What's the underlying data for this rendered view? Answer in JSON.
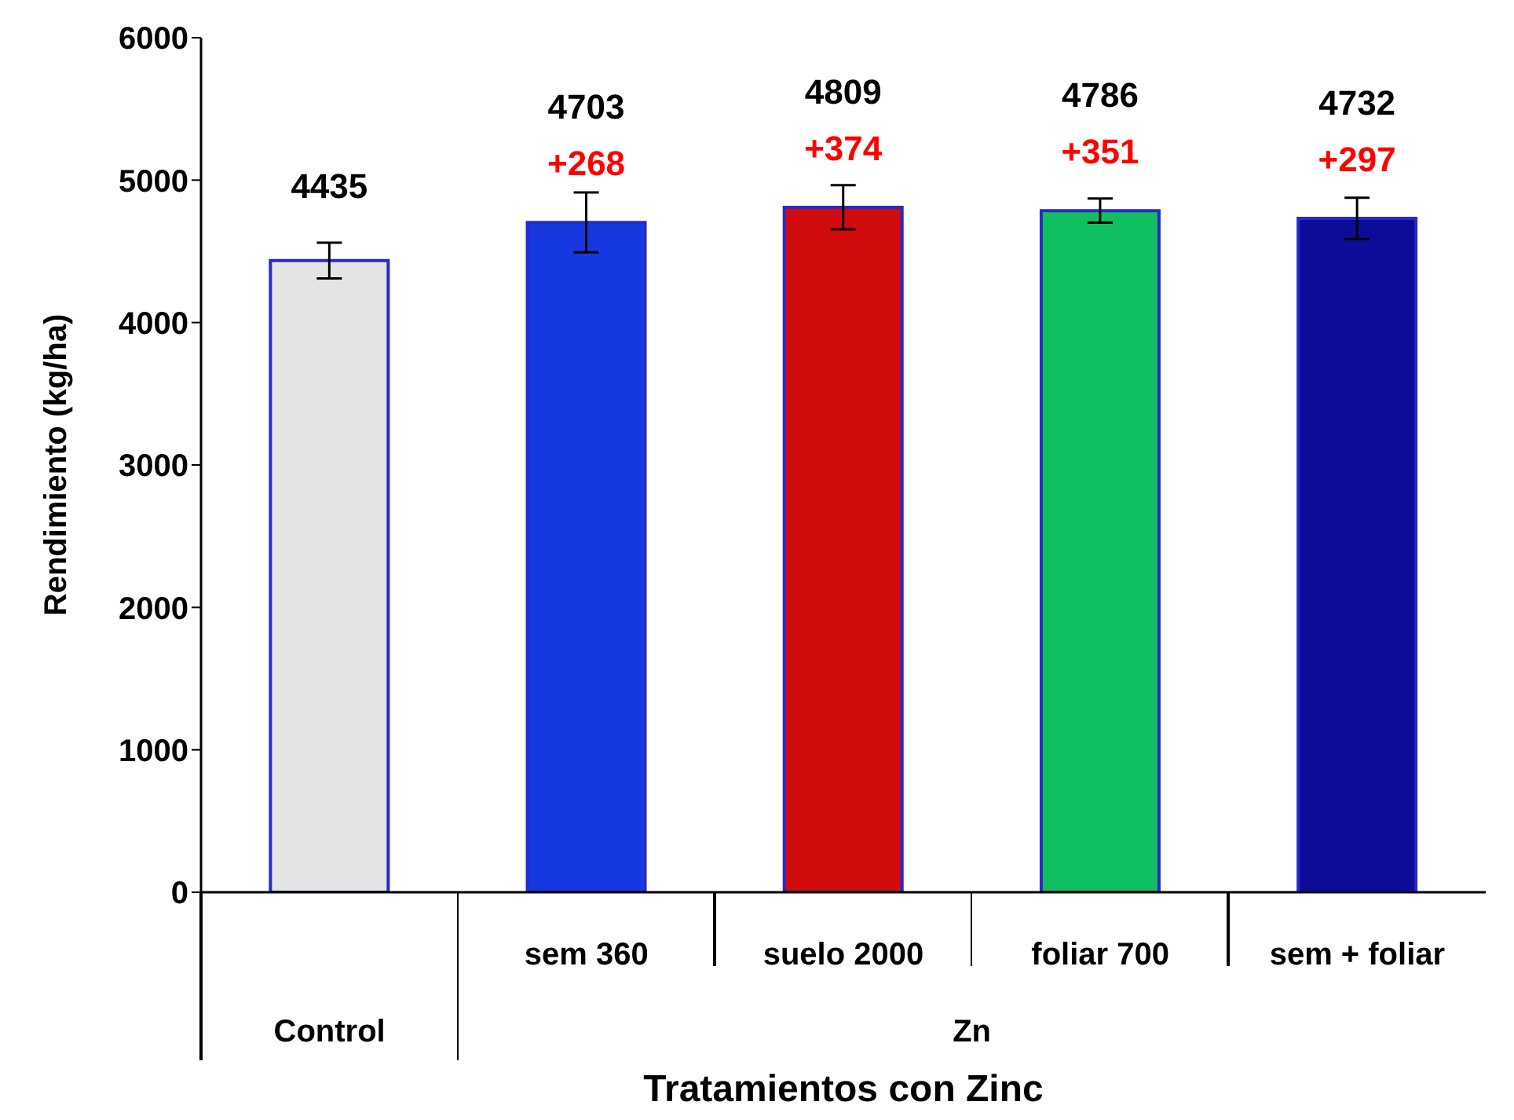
{
  "chart_data": {
    "type": "bar",
    "xlabel": "Tratamientos con Zinc",
    "ylabel": "Rendimiento (kg/ha)",
    "categories": [
      null,
      "sem 360",
      "suelo 2000",
      "foliar 700",
      "sem + foliar"
    ],
    "values": [
      4435,
      4703,
      4809,
      4786,
      4732
    ],
    "colors": [
      "#e4e4e4",
      "#1638e0",
      "#d00c0c",
      "#10c060",
      "#0c0c98"
    ],
    "errors": [
      125,
      210,
      155,
      85,
      145
    ],
    "ylim": [
      0,
      6000
    ],
    "yticks": [
      0,
      1000,
      2000,
      3000,
      4000,
      5000,
      6000
    ],
    "data_labels": true,
    "grid": false,
    "legend": false,
    "annotations": [
      {
        "text": "+268",
        "x": "sem 360",
        "y": 4703
      },
      {
        "text": "+374",
        "x": "suelo 2000",
        "y": 4809
      },
      {
        "text": "+351",
        "x": "foliar 700",
        "y": 4786
      },
      {
        "text": "+297",
        "x": "sem + foliar",
        "y": 4732
      },
      "Control",
      "Zn"
    ]
  }
}
